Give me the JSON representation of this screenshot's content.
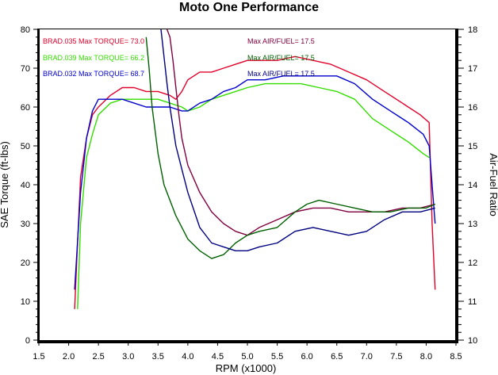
{
  "chart_data": {
    "type": "line",
    "title": "Moto One Performance",
    "xlabel": "RPM (x1000)",
    "ylabel": "SAE Torque (ft-lbs)",
    "y2label": "Air-Fuel Ratio",
    "xlim": [
      1.5,
      8.5
    ],
    "ylim": [
      0,
      80
    ],
    "y2lim": [
      10,
      18
    ],
    "xticks": [
      "1.5",
      "2.0",
      "2.5",
      "3.0",
      "3.5",
      "4.0",
      "4.5",
      "5.0",
      "5.5",
      "6.0",
      "6.5",
      "7.0",
      "7.5",
      "8.0",
      "8.5"
    ],
    "yticks": [
      "0",
      "10",
      "20",
      "30",
      "40",
      "50",
      "60",
      "70",
      "80"
    ],
    "y2ticks": [
      "10",
      "11",
      "12",
      "13",
      "14",
      "15",
      "16",
      "17",
      "18"
    ],
    "grid": false,
    "legend_left": [
      {
        "text": "BRAD.035  Max TORQUE= 73.0",
        "color": "#e0002a"
      },
      {
        "text": "BRAD.039  Max TORQUE= 66.2",
        "color": "#33dd00"
      },
      {
        "text": "BRAD.032  Max TORQUE= 68.7",
        "color": "#0000cc"
      }
    ],
    "legend_right": [
      {
        "text": "Max AIR/FUEL= 17.5",
        "color": "#800040"
      },
      {
        "text": "Max AIR/FUEL= 17.5",
        "color": "#006000"
      },
      {
        "text": "Max AIR/FUEL= 17.5",
        "color": "#000080"
      }
    ],
    "series": [
      {
        "name": "BRAD.035",
        "axis": "torque",
        "color": "#e0002a",
        "x": [
          2.1,
          2.15,
          2.2,
          2.3,
          2.4,
          2.5,
          2.7,
          2.9,
          3.1,
          3.3,
          3.5,
          3.7,
          3.8,
          3.9,
          4.0,
          4.2,
          4.4,
          4.6,
          4.8,
          5.0,
          5.2,
          5.5,
          5.8,
          6.1,
          6.4,
          6.7,
          7.0,
          7.3,
          7.6,
          7.9,
          8.05,
          8.1,
          8.15
        ],
        "y": [
          8,
          25,
          42,
          52,
          58,
          60,
          63,
          65,
          65,
          64,
          64,
          63,
          62,
          64,
          67,
          69,
          69,
          70,
          71,
          72,
          72,
          72,
          73,
          72,
          71,
          69,
          67,
          64,
          61,
          58,
          56,
          30,
          13
        ]
      },
      {
        "name": "BRAD.039",
        "axis": "torque",
        "color": "#33dd00",
        "x": [
          2.15,
          2.2,
          2.3,
          2.4,
          2.5,
          2.7,
          2.9,
          3.1,
          3.3,
          3.5,
          3.7,
          3.9,
          4.0,
          4.2,
          4.4,
          4.6,
          4.8,
          5.0,
          5.3,
          5.6,
          5.9,
          6.2,
          6.5,
          6.8,
          7.1,
          7.4,
          7.7,
          7.95,
          8.05
        ],
        "y": [
          8,
          30,
          47,
          53,
          58,
          61,
          62,
          62,
          62,
          62,
          61,
          60,
          59,
          60,
          62,
          63,
          64,
          65,
          66,
          66,
          66,
          65,
          64,
          62,
          57,
          54,
          51,
          48,
          47
        ]
      },
      {
        "name": "BRAD.032",
        "axis": "torque",
        "color": "#0000cc",
        "x": [
          2.1,
          2.2,
          2.3,
          2.4,
          2.5,
          2.7,
          2.9,
          3.1,
          3.3,
          3.5,
          3.7,
          3.9,
          4.0,
          4.2,
          4.4,
          4.6,
          4.8,
          5.0,
          5.3,
          5.6,
          5.9,
          6.2,
          6.5,
          6.8,
          7.1,
          7.4,
          7.7,
          7.95,
          8.05,
          8.1,
          8.15
        ],
        "y": [
          13,
          38,
          52,
          59,
          62,
          62,
          62,
          61,
          60,
          60,
          60,
          59,
          59,
          61,
          62,
          64,
          65,
          67,
          67,
          68,
          68,
          68,
          68,
          66,
          62,
          59,
          56,
          53,
          50,
          40,
          30
        ]
      },
      {
        "name": "AFR 035",
        "axis": "afr",
        "color": "#800040",
        "x": [
          3.65,
          3.7,
          3.75,
          3.8,
          3.85,
          3.9,
          4.0,
          4.2,
          4.4,
          4.6,
          4.8,
          5.0,
          5.2,
          5.5,
          5.8,
          6.1,
          6.4,
          6.7,
          7.0,
          7.3,
          7.6,
          7.9,
          8.15
        ],
        "y": [
          18,
          17.8,
          17.2,
          16.5,
          15.8,
          15.2,
          14.5,
          13.8,
          13.3,
          13,
          12.8,
          12.7,
          12.9,
          13.1,
          13.3,
          13.4,
          13.4,
          13.3,
          13.3,
          13.3,
          13.4,
          13.4,
          13.5
        ]
      },
      {
        "name": "AFR 039",
        "axis": "afr",
        "color": "#006000",
        "x": [
          3.3,
          3.35,
          3.4,
          3.5,
          3.6,
          3.7,
          3.8,
          4.0,
          4.2,
          4.4,
          4.6,
          4.8,
          5.0,
          5.2,
          5.5,
          5.8,
          6.0,
          6.2,
          6.5,
          6.8,
          7.1,
          7.4,
          7.7,
          8.0,
          8.15
        ],
        "y": [
          17.8,
          17,
          16,
          14.8,
          14,
          13.6,
          13.2,
          12.6,
          12.3,
          12.1,
          12.2,
          12.5,
          12.7,
          12.8,
          12.9,
          13.3,
          13.5,
          13.6,
          13.5,
          13.4,
          13.3,
          13.3,
          13.4,
          13.4,
          13.5
        ]
      },
      {
        "name": "AFR 032",
        "axis": "afr",
        "color": "#000080",
        "x": [
          3.55,
          3.6,
          3.65,
          3.7,
          3.8,
          3.9,
          4.0,
          4.2,
          4.4,
          4.6,
          4.8,
          5.0,
          5.2,
          5.5,
          5.8,
          6.1,
          6.4,
          6.7,
          7.0,
          7.3,
          7.6,
          7.9,
          8.15
        ],
        "y": [
          18,
          17.3,
          16.6,
          16,
          15,
          14.4,
          13.8,
          12.9,
          12.5,
          12.4,
          12.3,
          12.3,
          12.4,
          12.5,
          12.8,
          12.9,
          12.8,
          12.7,
          12.8,
          13.1,
          13.3,
          13.3,
          13.4
        ]
      }
    ]
  }
}
